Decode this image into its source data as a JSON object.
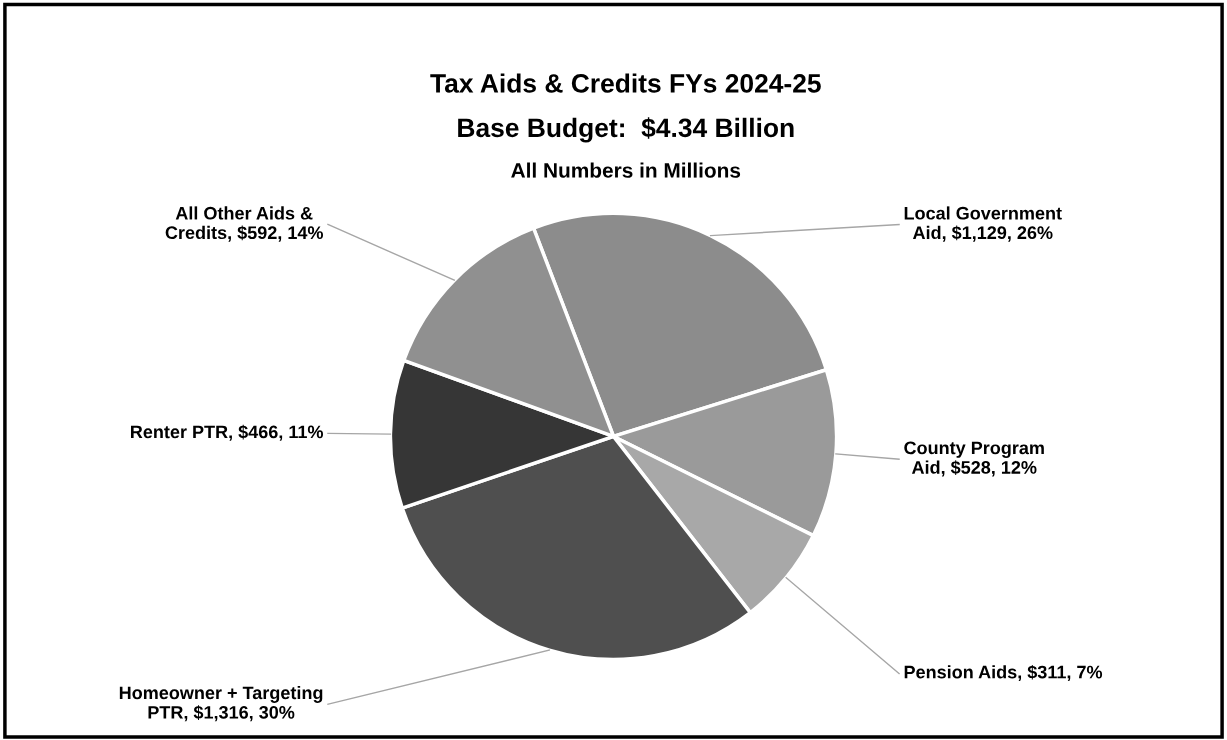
{
  "chart_data": {
    "type": "pie",
    "title": "Tax Aids & Credits FYs 2024-25",
    "subtitle": "Base Budget:  $4.34 Billion",
    "annotations": [
      "All Numbers in Millions"
    ],
    "categories": [
      "Local Government Aid",
      "County Program Aid",
      "Pension Aids",
      "Homeowner + Targeting PTR",
      "Renter PTR",
      "All Other Aids & Credits"
    ],
    "values": [
      1129,
      528,
      311,
      1316,
      466,
      592
    ],
    "value_labels": [
      "$1,129, 26%",
      "$528, 12%",
      "$311, 7%",
      "$1,316, 30%",
      "$466, 11%",
      "$592, 14%"
    ],
    "colors": [
      "#8c8c8c",
      "#9a9a9a",
      "#a8a8a8",
      "#4f4f4f",
      "#363636",
      "#909090"
    ],
    "legend": false
  }
}
